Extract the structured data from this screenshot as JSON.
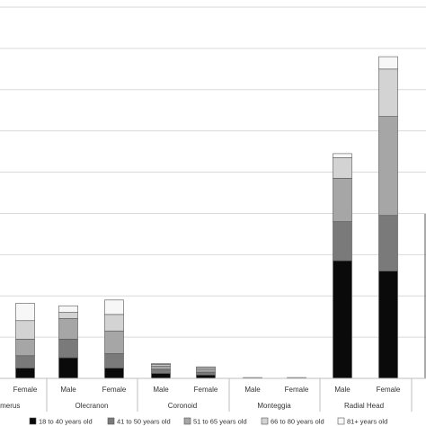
{
  "chart_data": {
    "type": "bar",
    "stacked": true,
    "grid": true,
    "legend_position": "bottom",
    "ylim": [
      0,
      9
    ],
    "y_gridlines": [
      1,
      2,
      3,
      4,
      5,
      6,
      7,
      8,
      9
    ],
    "groups": [
      {
        "label": "umerus",
        "categories": [
          "Female"
        ]
      },
      {
        "label": "Olecranon",
        "categories": [
          "Male",
          "Female"
        ]
      },
      {
        "label": "Coronoid",
        "categories": [
          "Male",
          "Female"
        ]
      },
      {
        "label": "Monteggia",
        "categories": [
          "Male",
          "Female"
        ]
      },
      {
        "label": "Radial Head",
        "categories": [
          "Male",
          "Female"
        ]
      }
    ],
    "categories": [
      "Female",
      "Male",
      "Female",
      "Male",
      "Female",
      "Male",
      "Female",
      "Male",
      "Female"
    ],
    "series": [
      {
        "name": "18 to 40 years old",
        "color": "#0a0a0a",
        "values": [
          0.25,
          0.5,
          0.25,
          0.12,
          0.08,
          0,
          0,
          2.85,
          2.6
        ]
      },
      {
        "name": "41 to 50 years old",
        "color": "#7a7a7a",
        "values": [
          0.3,
          0.45,
          0.35,
          0.1,
          0.07,
          0,
          0,
          0.95,
          1.35
        ]
      },
      {
        "name": "51 to 65 years old",
        "color": "#a6a6a6",
        "values": [
          0.4,
          0.5,
          0.55,
          0.08,
          0.07,
          0.02,
          0.02,
          1.05,
          2.4
        ]
      },
      {
        "name": "66 to 80 years old",
        "color": "#d3d3d3",
        "values": [
          0.45,
          0.15,
          0.4,
          0.04,
          0.04,
          0,
          0,
          0.5,
          1.15
        ]
      },
      {
        "name": "81+ years old",
        "color": "#f7f7f7",
        "values": [
          0.42,
          0.16,
          0.35,
          0.02,
          0.02,
          0,
          0,
          0.1,
          0.3
        ]
      }
    ]
  }
}
